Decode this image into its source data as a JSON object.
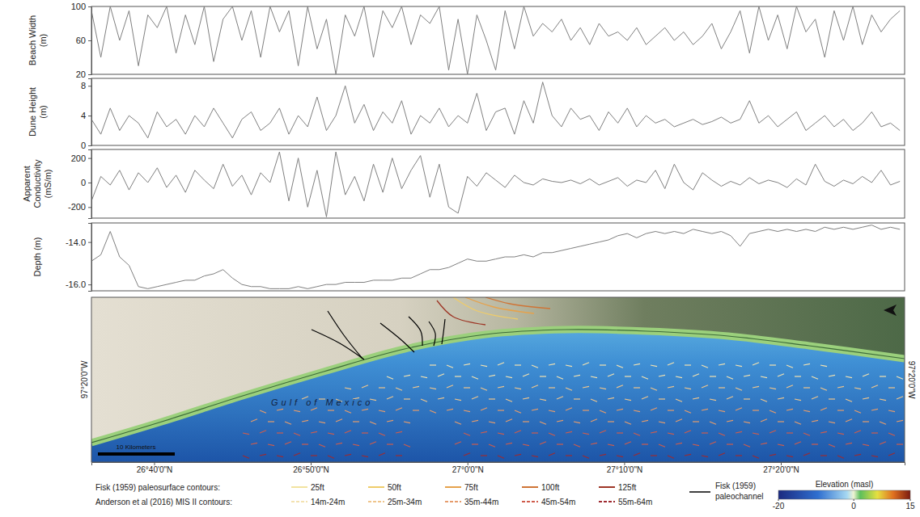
{
  "chart_data": [
    {
      "type": "line",
      "y_label": "Beach Width (m)",
      "tick_labels": "y",
      "x": [
        26.6,
        26.61,
        26.62,
        26.63,
        26.64,
        26.65,
        26.66,
        26.67,
        26.68,
        26.69,
        26.7,
        26.71,
        26.72,
        26.73,
        26.74,
        26.75,
        26.76,
        26.77,
        26.78,
        26.79,
        26.8,
        26.81,
        26.82,
        26.83,
        26.84,
        26.85,
        26.86,
        26.87,
        26.88,
        26.89,
        26.9,
        26.91,
        26.92,
        26.93,
        26.94,
        26.95,
        26.96,
        26.97,
        26.98,
        26.99,
        27,
        27.01,
        27.02,
        27.03,
        27.04,
        27.05,
        27.06,
        27.07,
        27.08,
        27.09,
        27.1,
        27.11,
        27.12,
        27.13,
        27.14,
        27.15,
        27.16,
        27.17,
        27.18,
        27.19,
        27.2,
        27.21,
        27.22,
        27.23,
        27.24,
        27.25,
        27.26,
        27.27,
        27.28,
        27.29,
        27.3,
        27.31,
        27.32,
        27.33,
        27.34,
        27.35,
        27.36,
        27.37,
        27.38,
        27.39,
        27.4,
        27.41,
        27.42,
        27.43,
        27.44,
        27.45,
        27.46
      ],
      "xlim": [
        26.6,
        27.465
      ],
      "ylim": [
        20,
        100
      ],
      "yticks": [
        20,
        60,
        100
      ],
      "series": [
        {
          "color": "#7f7f7f",
          "values": [
            95,
            40,
            100,
            60,
            95,
            30,
            90,
            75,
            100,
            45,
            90,
            55,
            100,
            35,
            85,
            100,
            60,
            95,
            40,
            100,
            70,
            95,
            30,
            100,
            50,
            85,
            20,
            90,
            65,
            100,
            40,
            95,
            75,
            100,
            55,
            90,
            80,
            100,
            25,
            85,
            20,
            90,
            60,
            25,
            95,
            50,
            100,
            65,
            80,
            70,
            85,
            60,
            75,
            55,
            80,
            65,
            70,
            60,
            75,
            55,
            65,
            75,
            60,
            70,
            55,
            65,
            80,
            50,
            70,
            95,
            45,
            100,
            60,
            90,
            50,
            100,
            70,
            85,
            40,
            95,
            60,
            100,
            55,
            90,
            70,
            85,
            95
          ]
        }
      ]
    },
    {
      "type": "line",
      "y_label": "Dune Height (m)",
      "tick_labels": "y",
      "x": [
        26.6,
        26.61,
        26.62,
        26.63,
        26.64,
        26.65,
        26.66,
        26.67,
        26.68,
        26.69,
        26.7,
        26.71,
        26.72,
        26.73,
        26.74,
        26.75,
        26.76,
        26.77,
        26.78,
        26.79,
        26.8,
        26.81,
        26.82,
        26.83,
        26.84,
        26.85,
        26.86,
        26.87,
        26.88,
        26.89,
        26.9,
        26.91,
        26.92,
        26.93,
        26.94,
        26.95,
        26.96,
        26.97,
        26.98,
        26.99,
        27,
        27.01,
        27.02,
        27.03,
        27.04,
        27.05,
        27.06,
        27.07,
        27.08,
        27.09,
        27.1,
        27.11,
        27.12,
        27.13,
        27.14,
        27.15,
        27.16,
        27.17,
        27.18,
        27.19,
        27.2,
        27.21,
        27.22,
        27.23,
        27.24,
        27.25,
        27.26,
        27.27,
        27.28,
        27.29,
        27.3,
        27.31,
        27.32,
        27.33,
        27.34,
        27.35,
        27.36,
        27.37,
        27.38,
        27.39,
        27.4,
        27.41,
        27.42,
        27.43,
        27.44,
        27.45,
        27.46
      ],
      "xlim": [
        26.6,
        27.465
      ],
      "ylim": [
        0,
        9
      ],
      "yticks": [
        0,
        4,
        8
      ],
      "series": [
        {
          "color": "#7f7f7f",
          "values": [
            3.5,
            1.5,
            5,
            2,
            4,
            3,
            1,
            4.5,
            2.5,
            3.5,
            1.5,
            4,
            2.5,
            5,
            3,
            1,
            3.5,
            4.5,
            2,
            3,
            5,
            1.5,
            4,
            2.5,
            6.5,
            2,
            4,
            8,
            3,
            5.5,
            2,
            4.5,
            3,
            6,
            1.5,
            4,
            3,
            5,
            2.5,
            4,
            3,
            7,
            2,
            4.5,
            5,
            1.5,
            6,
            3,
            8.5,
            4,
            2.5,
            5,
            3.5,
            4,
            2,
            4.5,
            3,
            5,
            2.5,
            4,
            3,
            3.5,
            2.5,
            3,
            3.5,
            2.8,
            3.2,
            3.8,
            3,
            3.5,
            6,
            3,
            4,
            2.5,
            3.5,
            4.5,
            2,
            3,
            4,
            2.5,
            3.5,
            2,
            3,
            4.5,
            2.5,
            3,
            2
          ]
        }
      ]
    },
    {
      "type": "line",
      "y_label": "Apparent Conductivity (mS/m)",
      "tick_labels": "y",
      "x": [
        26.6,
        26.61,
        26.62,
        26.63,
        26.64,
        26.65,
        26.66,
        26.67,
        26.68,
        26.69,
        26.7,
        26.71,
        26.72,
        26.73,
        26.74,
        26.75,
        26.76,
        26.77,
        26.78,
        26.79,
        26.8,
        26.81,
        26.82,
        26.83,
        26.84,
        26.85,
        26.86,
        26.87,
        26.88,
        26.89,
        26.9,
        26.91,
        26.92,
        26.93,
        26.94,
        26.95,
        26.96,
        26.97,
        26.98,
        26.99,
        27,
        27.01,
        27.02,
        27.03,
        27.04,
        27.05,
        27.06,
        27.07,
        27.08,
        27.09,
        27.1,
        27.11,
        27.12,
        27.13,
        27.14,
        27.15,
        27.16,
        27.17,
        27.18,
        27.19,
        27.2,
        27.21,
        27.22,
        27.23,
        27.24,
        27.25,
        27.26,
        27.27,
        27.28,
        27.29,
        27.3,
        27.31,
        27.32,
        27.33,
        27.34,
        27.35,
        27.36,
        27.37,
        27.38,
        27.39,
        27.4,
        27.41,
        27.42,
        27.43,
        27.44,
        27.45,
        27.46
      ],
      "xlim": [
        26.6,
        27.465
      ],
      "ylim": [
        -290,
        270
      ],
      "yticks": [
        -200,
        0,
        200
      ],
      "series": [
        {
          "color": "#7f7f7f",
          "values": [
            -150,
            50,
            -20,
            100,
            -60,
            80,
            0,
            120,
            -40,
            60,
            -80,
            100,
            20,
            -50,
            150,
            -30,
            60,
            -100,
            80,
            0,
            250,
            -150,
            200,
            -200,
            100,
            -280,
            250,
            -100,
            50,
            -150,
            150,
            -80,
            200,
            -50,
            100,
            220,
            -120,
            150,
            -200,
            -250,
            50,
            -30,
            80,
            20,
            -40,
            60,
            0,
            -20,
            30,
            10,
            0,
            20,
            -10,
            30,
            -20,
            10,
            40,
            -30,
            20,
            0,
            100,
            -50,
            150,
            0,
            -60,
            80,
            20,
            -30,
            10,
            -20,
            40,
            -10,
            20,
            0,
            -40,
            30,
            -20,
            150,
            10,
            -30,
            20,
            -10,
            50,
            0,
            100,
            -20,
            10
          ]
        }
      ]
    },
    {
      "type": "line",
      "y_label": "Depth (m)",
      "tick_labels": "y",
      "x": [
        26.6,
        26.61,
        26.62,
        26.63,
        26.64,
        26.65,
        26.66,
        26.67,
        26.68,
        26.69,
        26.7,
        26.71,
        26.72,
        26.73,
        26.74,
        26.75,
        26.76,
        26.77,
        26.78,
        26.79,
        26.8,
        26.81,
        26.82,
        26.83,
        26.84,
        26.85,
        26.86,
        26.87,
        26.88,
        26.89,
        26.9,
        26.91,
        26.92,
        26.93,
        26.94,
        26.95,
        26.96,
        26.97,
        26.98,
        26.99,
        27,
        27.01,
        27.02,
        27.03,
        27.04,
        27.05,
        27.06,
        27.07,
        27.08,
        27.09,
        27.1,
        27.11,
        27.12,
        27.13,
        27.14,
        27.15,
        27.16,
        27.17,
        27.18,
        27.19,
        27.2,
        27.21,
        27.22,
        27.23,
        27.24,
        27.25,
        27.26,
        27.27,
        27.28,
        27.29,
        27.3,
        27.31,
        27.32,
        27.33,
        27.34,
        27.35,
        27.36,
        27.37,
        27.38,
        27.39,
        27.4,
        27.41,
        27.42,
        27.43,
        27.44,
        27.45,
        27.46
      ],
      "xlim": [
        26.6,
        27.465
      ],
      "ylim": [
        -16.3,
        -13.1
      ],
      "yticks": [
        {
          "value": -14,
          "label": "-14.0"
        },
        {
          "value": -16,
          "label": "-16.0"
        }
      ],
      "series": [
        {
          "color": "#7f7f7f",
          "values": [
            -14.9,
            -14.6,
            -13.5,
            -14.7,
            -15.1,
            -16.1,
            -16.2,
            -16.1,
            -16.0,
            -15.9,
            -15.8,
            -15.8,
            -15.6,
            -15.5,
            -15.3,
            -15.7,
            -16.0,
            -16.1,
            -16.1,
            -16.2,
            -16.2,
            -16.2,
            -16.1,
            -16.2,
            -16.1,
            -16.0,
            -16.0,
            -15.9,
            -15.9,
            -15.9,
            -15.8,
            -15.8,
            -15.8,
            -15.7,
            -15.7,
            -15.5,
            -15.3,
            -15.3,
            -15.2,
            -15.0,
            -14.8,
            -14.9,
            -14.9,
            -14.8,
            -14.7,
            -14.7,
            -14.6,
            -14.7,
            -14.5,
            -14.5,
            -14.4,
            -14.3,
            -14.2,
            -14.1,
            -14.0,
            -13.9,
            -13.7,
            -13.6,
            -13.8,
            -13.6,
            -13.5,
            -13.6,
            -13.5,
            -13.6,
            -13.4,
            -13.5,
            -13.6,
            -13.5,
            -13.7,
            -14.2,
            -13.6,
            -13.5,
            -13.4,
            -13.5,
            -13.4,
            -13.5,
            -13.4,
            -13.5,
            -13.3,
            -13.4,
            -13.3,
            -13.4,
            -13.3,
            -13.2,
            -13.4,
            -13.3,
            -13.4
          ]
        }
      ]
    },
    {
      "type": "map",
      "xlim": [
        26.6,
        27.465
      ],
      "xticks": [
        {
          "value": 26.6667,
          "label": "26°40'0\"N"
        },
        {
          "value": 26.8333,
          "label": "26°50'0\"N"
        },
        {
          "value": 27.0,
          "label": "27°0'0\"N"
        },
        {
          "value": 27.1667,
          "label": "27°10'0\"N"
        },
        {
          "value": 27.3333,
          "label": "27°20'0\"N"
        }
      ],
      "annotations": [
        "Gulf of Mexico"
      ],
      "side_labels": [
        "97°20'0\"W",
        "97°20'0\"W"
      ],
      "scale_bar_label": "10 Kilometers",
      "legend_groups": [
        {
          "title": "Fisk (1959) paleosurface contours:",
          "line_style": "solid",
          "items": [
            {
              "name": "25ft",
              "color": "#f2e3a0"
            },
            {
              "name": "50ft",
              "color": "#efcc6a"
            },
            {
              "name": "75ft",
              "color": "#e6a24c"
            },
            {
              "name": "100ft",
              "color": "#cf7436"
            },
            {
              "name": "125ft",
              "color": "#9e3626"
            }
          ]
        },
        {
          "title": "Anderson et al (2016) MIS II contours:",
          "line_style": "dashed",
          "items": [
            {
              "name": "14m-24m",
              "color": "#f3e2b0"
            },
            {
              "name": "25m-34m",
              "color": "#efc58c"
            },
            {
              "name": "35m-44m",
              "color": "#e69c6c"
            },
            {
              "name": "45m-54m",
              "color": "#cf5c4c"
            },
            {
              "name": "55m-64m",
              "color": "#9e2a30"
            }
          ]
        }
      ],
      "paleochannel": {
        "label_lines": [
          "Fisk (1959)",
          "paleochannel"
        ],
        "color": "#000000"
      },
      "colorbar": {
        "title": "Elevation (masl)",
        "range": [
          -20,
          15
        ],
        "ticks": [
          -20,
          0,
          15
        ]
      }
    }
  ]
}
